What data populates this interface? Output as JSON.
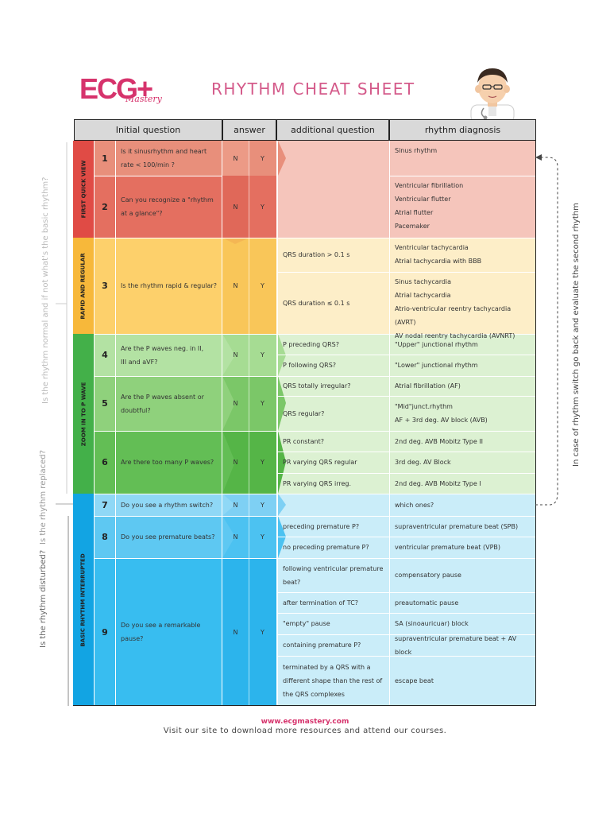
{
  "logo": {
    "text": "ECG+",
    "subtext": "Mastery"
  },
  "title": "RHYTHM CHEAT SHEET",
  "headers": [
    "Initial question",
    "answer",
    "additional question",
    "rhythm diagnosis"
  ],
  "sections": [
    {
      "label": "FIRST QUICK VIEW"
    },
    {
      "label": "RAPID AND REGULAR"
    },
    {
      "label": "ZOOM IN TO P WAVE"
    },
    {
      "label": "BASIC RHYTHM INTERRUPTED"
    }
  ],
  "answer_labels": {
    "no": "N",
    "yes": "Y"
  },
  "questions": [
    {
      "num": "1",
      "text": "Is it sinusrhythm and heart rate < 100/min ?"
    },
    {
      "num": "2",
      "text": "Can you recognize a \"rhythm at a glance\"?"
    },
    {
      "num": "3",
      "text": "Is the rhythm rapid & regular?"
    },
    {
      "num": "4",
      "text": "Are the P waves neg. in II, III and aVF?"
    },
    {
      "num": "5",
      "text": "Are the P waves absent or doubtful?"
    },
    {
      "num": "6",
      "text": "Are there too many P waves?"
    },
    {
      "num": "7",
      "text": "Do you see a rhythm switch?"
    },
    {
      "num": "8",
      "text": "Do you see premature beats?"
    },
    {
      "num": "9",
      "text": "Do you see a remarkable pause?"
    }
  ],
  "rows": [
    {
      "additional": "",
      "diagnosis": "Sinus rhythm"
    },
    {
      "additional": "",
      "diagnosis": "Ventricular fibrillation\nVentricular flutter\nAtrial flutter\nPacemaker"
    },
    {
      "additional": "QRS duration > 0.1 s",
      "diagnosis": "Ventricular tachycardia\nAtrial tachycardia with BBB"
    },
    {
      "additional": "QRS duration ≤ 0.1 s",
      "diagnosis": "Sinus tachycardia\nAtrial tachycardia\nAtrio-ventricular reentry tachycardia (AVRT)\nAV nodal reentry tachycardia (AVNRT)"
    },
    {
      "additional": "P preceding QRS?",
      "diagnosis": "\"Upper\" junctional rhythm"
    },
    {
      "additional": "P following QRS?",
      "diagnosis": "\"Lower\" junctional rhythm"
    },
    {
      "additional": "QRS totally irregular?",
      "diagnosis": "Atrial fibrillation (AF)"
    },
    {
      "additional": "QRS regular?",
      "diagnosis": "\"Mid\"junct.rhythm\nAF + 3rd deg. AV block (AVB)"
    },
    {
      "additional": "PR constant?",
      "diagnosis": "2nd deg. AVB Mobitz Type II"
    },
    {
      "additional": "PR varying QRS regular",
      "diagnosis": "3rd deg. AV Block"
    },
    {
      "additional": "PR varying QRS irreg.",
      "diagnosis": "2nd deg. AVB Mobitz Type I"
    },
    {
      "additional": "",
      "diagnosis": "which ones?"
    },
    {
      "additional": "preceding premature P?",
      "diagnosis": "supraventricular premature beat (SPB)"
    },
    {
      "additional": "no preceding premature P?",
      "diagnosis": "ventricular premature beat (VPB)"
    },
    {
      "additional": "following ventricular premature beat?",
      "diagnosis": "compensatory pause"
    },
    {
      "additional": "after termination of TC?",
      "diagnosis": "preautomatic pause"
    },
    {
      "additional": "\"empty\" pause",
      "diagnosis": "SA (sinoauricuar) block"
    },
    {
      "additional": "containing premature P?",
      "diagnosis": "supraventricular premature beat + AV block"
    },
    {
      "additional": "terminated by a QRS with a different shape than the rest of the QRS complexes",
      "diagnosis": "escape beat"
    }
  ],
  "side_notes": {
    "left_top": "Is the rhythm normal and if not what's the basic rhythm?",
    "left_mid": "Is the rhythm replaced?",
    "left_bottom": "Is the rhythm disturbed?",
    "right": "In case of rhythm switch go back and evaluate the second rhythm"
  },
  "footer": {
    "url": "www.ecgmastery.com",
    "message": "Visit our site to download more resources and attend our courses."
  },
  "colors": {
    "brand": "#d6336c",
    "red_dark": "#e04b45",
    "red_mid": "#e46f60",
    "red_light": "#f5c5bb",
    "orange_dark": "#f7b83a",
    "orange_mid": "#fdd06b",
    "orange_light": "#fdeec8",
    "green_dark": "#43b049",
    "green_mid": "#9fd98a",
    "green_light": "#dcf1d2",
    "blue_dark": "#12a4e3",
    "blue_mid": "#38bdf0",
    "blue_light": "#caedf9"
  }
}
